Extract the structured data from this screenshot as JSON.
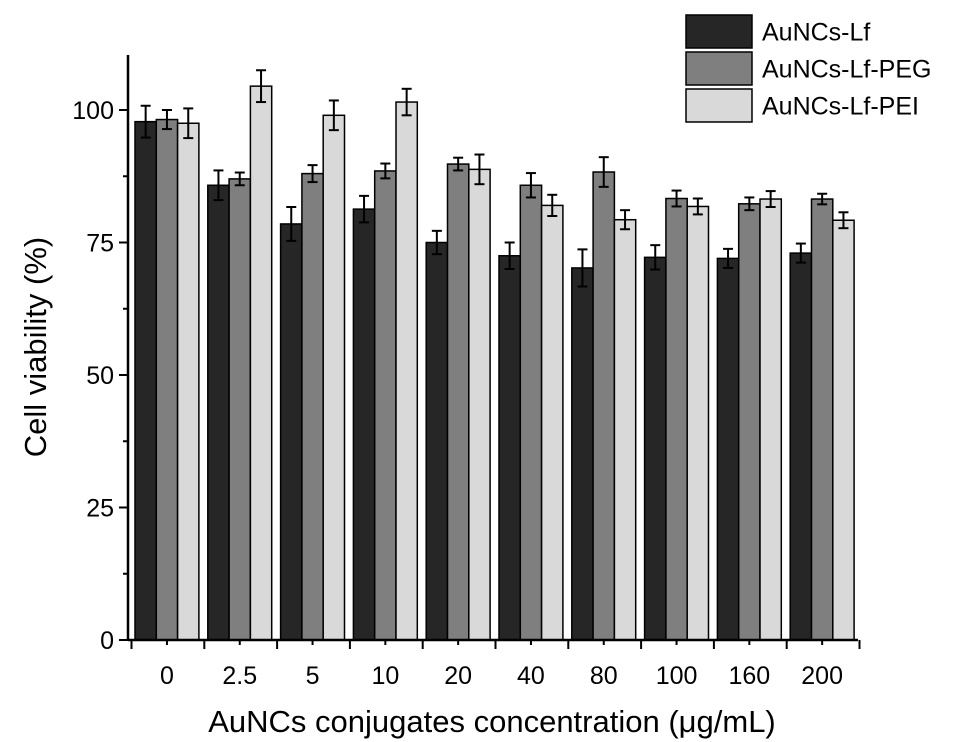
{
  "chart_data": {
    "type": "bar",
    "title": "",
    "xlabel": "AuNCs conjugates concentration (μg/mL)",
    "ylabel": "Cell viability (%)",
    "ylim": [
      0,
      110
    ],
    "yticks": [
      0,
      25,
      50,
      75,
      100
    ],
    "categories": [
      "0",
      "2.5",
      "5",
      "10",
      "20",
      "40",
      "80",
      "100",
      "160",
      "200"
    ],
    "error_bars": true,
    "grid": false,
    "legend_position": "top-right",
    "series": [
      {
        "name": "AuNCs-Lf",
        "color": "#262626",
        "values": [
          97.8,
          85.8,
          78.5,
          81.3,
          75.0,
          72.5,
          70.2,
          72.2,
          72.0,
          73.0
        ],
        "errors": [
          3.0,
          2.8,
          3.2,
          2.5,
          2.2,
          2.5,
          3.5,
          2.3,
          1.8,
          1.8
        ]
      },
      {
        "name": "AuNCs-Lf-PEG",
        "color": "#7f7f7f",
        "values": [
          98.2,
          87.0,
          88.0,
          88.5,
          89.8,
          85.8,
          88.3,
          83.3,
          82.3,
          83.2
        ],
        "errors": [
          1.8,
          1.2,
          1.6,
          1.4,
          1.2,
          2.3,
          2.8,
          1.5,
          1.2,
          1.0
        ]
      },
      {
        "name": "AuNCs-Lf-PEI",
        "color": "#d9d9d9",
        "values": [
          97.5,
          104.5,
          99.0,
          101.5,
          88.8,
          82.0,
          79.3,
          81.8,
          83.2,
          79.2
        ],
        "errors": [
          2.8,
          3.0,
          2.8,
          2.5,
          2.8,
          2.0,
          1.8,
          1.5,
          1.5,
          1.5
        ]
      }
    ]
  }
}
